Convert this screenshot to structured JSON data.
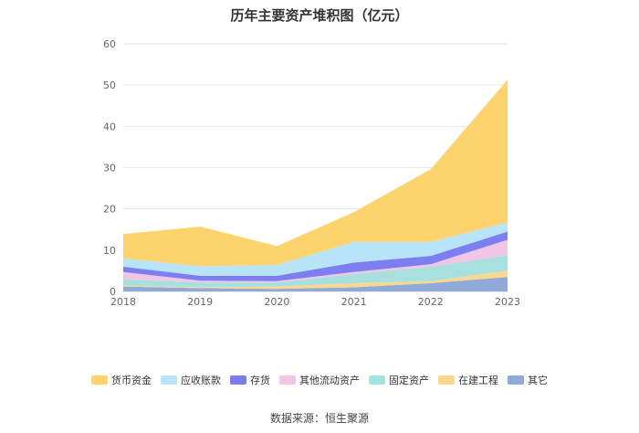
{
  "chart_data": {
    "type": "area",
    "stacked": true,
    "title": "历年主要资产堆积图（亿元）",
    "x": [
      "2018",
      "2019",
      "2020",
      "2021",
      "2022",
      "2023"
    ],
    "ylim": [
      0,
      60
    ],
    "yticks": [
      0,
      10,
      20,
      30,
      40,
      50,
      60
    ],
    "grid": true,
    "legend_position": "bottom",
    "series": [
      {
        "name": "其它",
        "color": "#8fa9d8",
        "values": [
          1.2,
          0.8,
          0.6,
          1.0,
          2.0,
          3.5
        ]
      },
      {
        "name": "在建工程",
        "color": "#fcd88f",
        "values": [
          0.2,
          0.2,
          0.6,
          1.0,
          0.5,
          1.5
        ]
      },
      {
        "name": "固定资产",
        "color": "#a8e0e0",
        "values": [
          1.5,
          1.2,
          1.0,
          2.2,
          3.5,
          3.8
        ]
      },
      {
        "name": "其他流动资产",
        "color": "#f0c6e4",
        "values": [
          1.8,
          0.4,
          0.3,
          0.5,
          0.6,
          3.7
        ]
      },
      {
        "name": "存货",
        "color": "#7d7ff0",
        "values": [
          1.3,
          1.2,
          1.3,
          2.3,
          2.0,
          2.0
        ]
      },
      {
        "name": "应收账款",
        "color": "#b8e4fa",
        "values": [
          2.0,
          2.3,
          2.6,
          5.0,
          3.4,
          2.2
        ]
      },
      {
        "name": "货币资金",
        "color": "#fdd36e",
        "values": [
          5.9,
          9.6,
          4.6,
          7.2,
          17.6,
          34.6
        ]
      }
    ],
    "legend_order": [
      "货币资金",
      "应收账款",
      "存货",
      "其他流动资产",
      "固定资产",
      "在建工程",
      "其它"
    ]
  },
  "source": "数据来源：恒生聚源"
}
